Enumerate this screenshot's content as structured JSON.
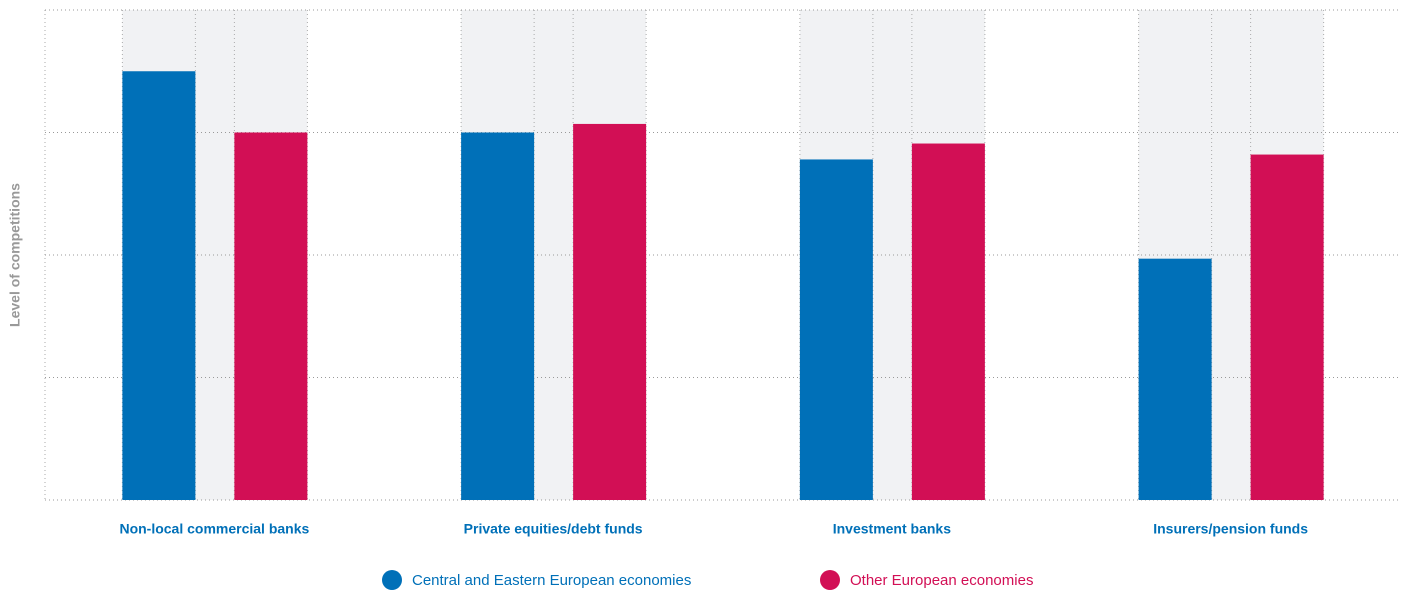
{
  "chart_data": {
    "type": "bar",
    "y_label": "Level of competitions",
    "categories": [
      "Non-local commercial banks",
      "Private equities/debt funds",
      "Investment banks",
      "Insurers/pension funds"
    ],
    "series": [
      {
        "name": "Central and Eastern European economies",
        "color": "#0070b8",
        "values": [
          3.5,
          3.0,
          2.78,
          1.97
        ]
      },
      {
        "name": "Other European economies",
        "color": "#d20f55",
        "values": [
          3.0,
          3.07,
          2.91,
          2.82
        ]
      }
    ],
    "ylim": [
      0,
      4
    ],
    "yticks": [
      0,
      1,
      2,
      3,
      4
    ],
    "grid": true
  }
}
